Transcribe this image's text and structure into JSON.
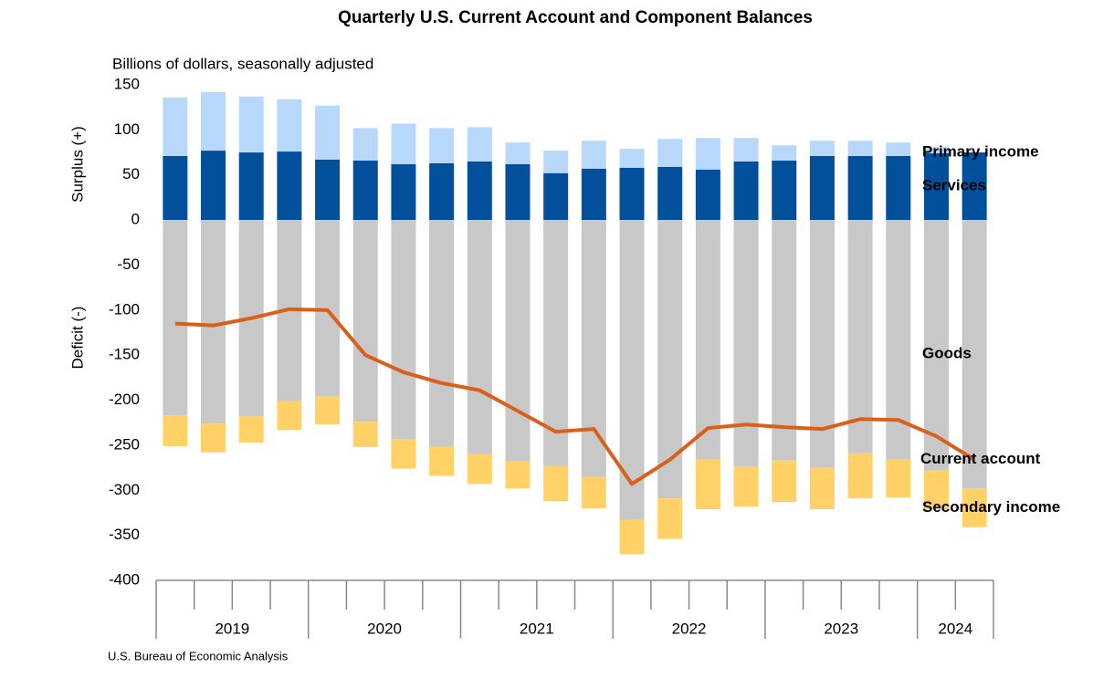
{
  "chart_data": {
    "type": "bar",
    "title": "Quarterly U.S. Current Account and Component Balances",
    "subtitle": "Billions of dollars, seasonally adjusted",
    "y_axis_labels": [
      "Surplus (+)",
      "Deficit (-)"
    ],
    "source": "U.S. Bureau of Economic Analysis",
    "categories": [
      "2019",
      null,
      null,
      null,
      "2020",
      null,
      null,
      null,
      "2021",
      null,
      null,
      null,
      "2022",
      null,
      null,
      null,
      "2023",
      null,
      null,
      null,
      "2024",
      null
    ],
    "ylim": [
      -400,
      150
    ],
    "yticks": [
      150,
      100,
      50,
      0,
      -50,
      -100,
      -150,
      -200,
      -250,
      -300,
      -350,
      -400
    ],
    "grid": false,
    "series": [
      {
        "name": "Services",
        "color": "#024f9c",
        "values": [
          71,
          77,
          75,
          76,
          67,
          66,
          62,
          63,
          65,
          62,
          52,
          57,
          58,
          59,
          56,
          65,
          66,
          71,
          71,
          71,
          74,
          75
        ]
      },
      {
        "name": "Primary income",
        "color": "#b7d8fb",
        "values": [
          65,
          65,
          62,
          58,
          60,
          36,
          45,
          39,
          38,
          24,
          25,
          31,
          21,
          31,
          35,
          26,
          17,
          17,
          17,
          15,
          7,
          0
        ]
      },
      {
        "name": "Goods",
        "color": "#c8c8c8",
        "values": [
          -217,
          -226,
          -218,
          -201,
          -196,
          -224,
          -243,
          -252,
          -260,
          -268,
          -273,
          -285,
          -333,
          -309,
          -266,
          -274,
          -267,
          -275,
          -259,
          -266,
          -278,
          -298
        ]
      },
      {
        "name": "Secondary income",
        "color": "#ffd166",
        "values": [
          -34,
          -32,
          -29,
          -32,
          -31,
          -28,
          -33,
          -32,
          -33,
          -30,
          -39,
          -35,
          -38,
          -45,
          -55,
          -44,
          -46,
          -46,
          -50,
          -42,
          -43,
          -43
        ]
      },
      {
        "name": "Current account",
        "type": "line",
        "color": "#d9601a",
        "values": [
          -115,
          -117,
          -109,
          -99,
          -100,
          -150,
          -169,
          -181,
          -189,
          -212,
          -235,
          -232,
          -293,
          -266,
          -231,
          -227,
          -230,
          -232,
          -221,
          -222,
          -240,
          -266
        ]
      }
    ]
  }
}
